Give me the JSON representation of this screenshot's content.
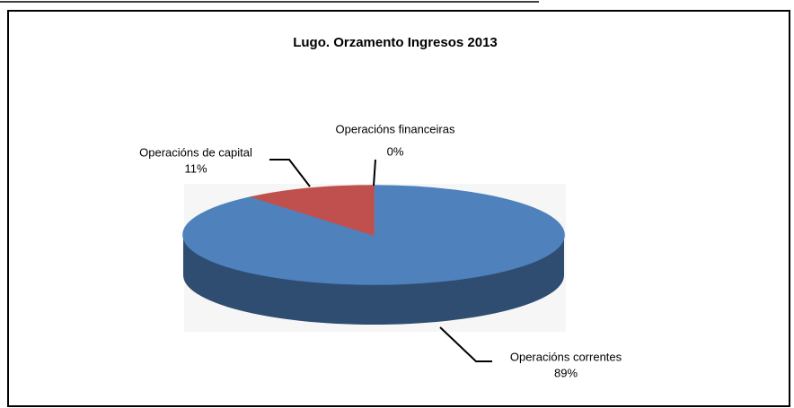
{
  "chart_data": {
    "type": "pie",
    "title": "Lugo. Orzamento Ingresos 2013",
    "categories": [
      "Operacións financeiras",
      "Operacións correntes",
      "Operacións de capital"
    ],
    "values": [
      0,
      89,
      11
    ],
    "value_labels": [
      "0%",
      "89%",
      "11%"
    ],
    "colors": [
      "#9bbb59",
      "#4f81bd",
      "#c0504d"
    ]
  }
}
